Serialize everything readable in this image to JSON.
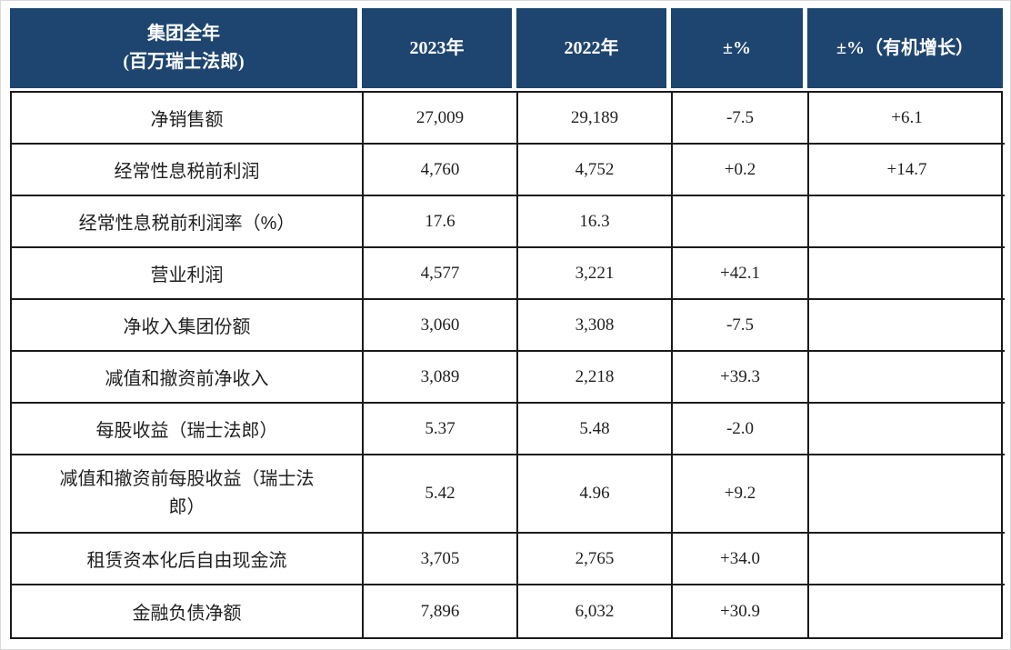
{
  "header": {
    "title_line1": "集团全年",
    "title_line2": "(百万瑞士法郎)",
    "col_2023": "2023年",
    "col_2022": "2022年",
    "col_change": "±%",
    "col_organic": "±%（有机增长）"
  },
  "chart_data": {
    "type": "table",
    "title": "集团全年 (百万瑞士法郎)",
    "columns": [
      "集团全年 (百万瑞士法郎)",
      "2023年",
      "2022年",
      "±%",
      "±%（有机增长）"
    ],
    "rows": [
      {
        "label": "净销售额",
        "y2023": "27,009",
        "y2022": "29,189",
        "change": "-7.5",
        "organic": "+6.1"
      },
      {
        "label": "经常性息税前利润",
        "y2023": "4,760",
        "y2022": "4,752",
        "change": "+0.2",
        "organic": "+14.7"
      },
      {
        "label": "经常性息税前利润率（%）",
        "y2023": "17.6",
        "y2022": "16.3",
        "change": "",
        "organic": ""
      },
      {
        "label": "营业利润",
        "y2023": "4,577",
        "y2022": "3,221",
        "change": "+42.1",
        "organic": ""
      },
      {
        "label": "净收入集团份额",
        "y2023": "3,060",
        "y2022": "3,308",
        "change": "-7.5",
        "organic": ""
      },
      {
        "label": "减值和撤资前净收入",
        "y2023": "3,089",
        "y2022": "2,218",
        "change": "+39.3",
        "organic": ""
      },
      {
        "label": "每股收益（瑞士法郎）",
        "y2023": "5.37",
        "y2022": "5.48",
        "change": "-2.0",
        "organic": ""
      },
      {
        "label": "减值和撤资前每股收益（瑞士法郎）",
        "y2023": "5.42",
        "y2022": "4.96",
        "change": "+9.2",
        "organic": ""
      },
      {
        "label": "租赁资本化后自由现金流",
        "y2023": "3,705",
        "y2022": "2,765",
        "change": "+34.0",
        "organic": ""
      },
      {
        "label": "金融负债净额",
        "y2023": "7,896",
        "y2022": "6,032",
        "change": "+30.9",
        "organic": ""
      }
    ]
  },
  "colors": {
    "header_bg": "#1E456F",
    "grid_line": "#1A1A1A",
    "body_text": "#1F1F1F",
    "header_text": "#FFFFFF"
  }
}
